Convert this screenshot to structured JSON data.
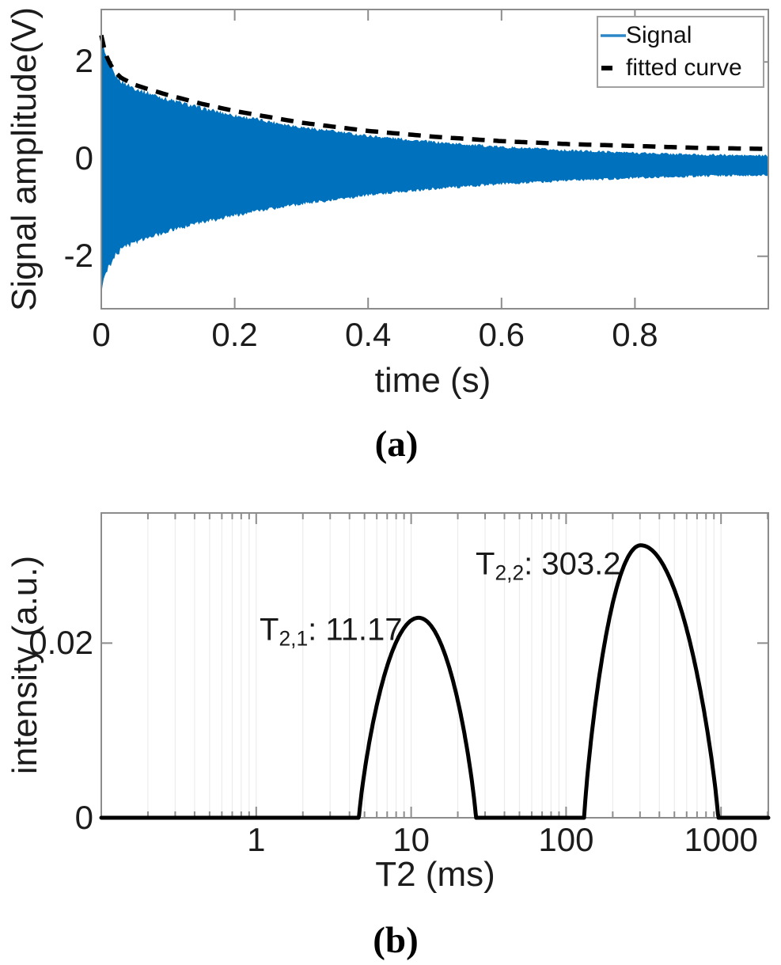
{
  "figure": {
    "panel_a_label": "(a)",
    "panel_b_label": "(b)"
  },
  "colors": {
    "signal_blue": "#0072BD",
    "fitted_black": "#000000",
    "axis_gray": "#8c8c8c",
    "grid_gray": "#ececec",
    "text": "#1c1c1c",
    "legend_border": "#a0a0a0"
  },
  "chart_data": [
    {
      "type": "area+line",
      "title": "",
      "xlabel": "time (s)",
      "ylabel": "Signal amplitude(V)",
      "xlim": [
        0,
        1
      ],
      "ylim": [
        -3.08,
        3.08
      ],
      "xticks": [
        0,
        0.2,
        0.4,
        0.6,
        0.8
      ],
      "xtick_labels": [
        "0",
        "0.2",
        "0.4",
        "0.6",
        "0.8"
      ],
      "yticks": [
        2,
        0,
        -2
      ],
      "ytick_labels": [
        "2",
        "0",
        "-2"
      ],
      "grid": false,
      "legend_position": "top-right",
      "legend": [
        {
          "label": "Signal",
          "style": "solid-blue"
        },
        {
          "label": "fitted curve",
          "style": "dashed-black"
        }
      ],
      "series": [
        {
          "name": "Signal",
          "kind": "noisy-oscillation-envelope",
          "t": [
            0,
            0.005,
            0.01,
            0.02,
            0.03,
            0.05,
            0.075,
            0.1,
            0.15,
            0.2,
            0.3,
            0.4,
            0.5,
            0.6,
            0.7,
            0.8,
            0.9,
            1.0
          ],
          "envelope": [
            2.62,
            2.32,
            2.12,
            1.87,
            1.73,
            1.59,
            1.47,
            1.36,
            1.18,
            1.03,
            0.79,
            0.61,
            0.48,
            0.38,
            0.31,
            0.26,
            0.22,
            0.2
          ],
          "dc_offset": -0.13
        },
        {
          "name": "fitted curve",
          "kind": "dashed-line",
          "t": [
            0,
            0.005,
            0.01,
            0.02,
            0.03,
            0.05,
            0.075,
            0.1,
            0.15,
            0.2,
            0.3,
            0.4,
            0.5,
            0.6,
            0.7,
            0.8,
            0.9,
            1.0
          ],
          "y": [
            2.55,
            2.24,
            2.04,
            1.8,
            1.67,
            1.53,
            1.42,
            1.32,
            1.14,
            0.99,
            0.75,
            0.58,
            0.46,
            0.37,
            0.31,
            0.27,
            0.23,
            0.21
          ]
        }
      ]
    },
    {
      "type": "line",
      "title": "",
      "xlabel": "T2 (ms)",
      "ylabel": "intensity (a.u.)",
      "xscale": "log",
      "xlim": [
        0.1,
        2020
      ],
      "ylim": [
        0,
        0.0349
      ],
      "xticks": [
        1,
        10,
        100,
        1000
      ],
      "xtick_labels": [
        "1",
        "10",
        "100",
        "1000"
      ],
      "yticks": [
        0,
        0.02
      ],
      "ytick_labels": [
        "0",
        "0.02"
      ],
      "grid": "x-minor-faint",
      "peaks": [
        {
          "name": "T2,1",
          "t2_ms": 11.17,
          "height": 0.0229,
          "log_width_left": 0.385,
          "log_width_right": 0.37
        },
        {
          "name": "T2,2",
          "t2_ms": 303.2,
          "height": 0.0312,
          "log_width_left": 0.365,
          "log_width_right": 0.5
        }
      ],
      "annotations": [
        {
          "base": "T",
          "sub": "2,1",
          "rest": ": 11.17",
          "anchor_ms": 1.05,
          "anchor_y": 0.0215
        },
        {
          "base": "T",
          "sub": "2,2",
          "rest": ": 303.2",
          "anchor_ms": 26,
          "anchor_y": 0.029
        }
      ]
    }
  ]
}
